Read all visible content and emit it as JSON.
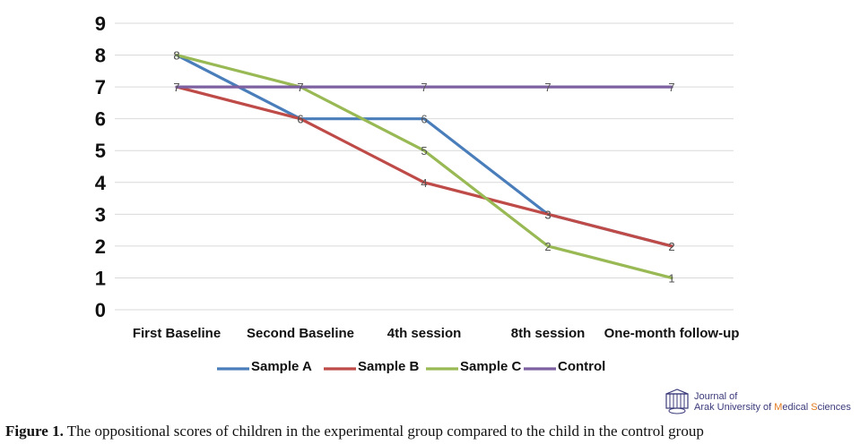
{
  "chart_data": {
    "type": "line",
    "categories": [
      "First Baseline",
      "Second Baseline",
      "4th session",
      "8th session",
      "One-month follow-up"
    ],
    "series": [
      {
        "name": "Sample A",
        "values": [
          8,
          6,
          6,
          3,
          2
        ],
        "color": "#4a7ebb"
      },
      {
        "name": "Sample B",
        "values": [
          7,
          6,
          4,
          3,
          2
        ],
        "color": "#be4b48"
      },
      {
        "name": "Sample C",
        "values": [
          8,
          7,
          5,
          2,
          1
        ],
        "color": "#98b954"
      },
      {
        "name": "Control",
        "values": [
          7,
          7,
          7,
          7,
          7
        ],
        "color": "#7d60a0"
      }
    ],
    "ylim": [
      0,
      9
    ],
    "yticks": [
      0,
      1,
      2,
      3,
      4,
      5,
      6,
      7,
      8,
      9
    ],
    "grid": true,
    "legend": "bottom",
    "data_labels": true
  },
  "logo": {
    "line1": "Journal of",
    "line2_pre": "Arak University of ",
    "line2_m": "M",
    "line2_mid": "edical ",
    "line2_s": "S",
    "line2_post": "ciences",
    "accent": "#e07a1f"
  },
  "caption": {
    "label": "Figure 1.",
    "text": " The oppositional scores of children in the experimental group compared to the child in the control group"
  }
}
